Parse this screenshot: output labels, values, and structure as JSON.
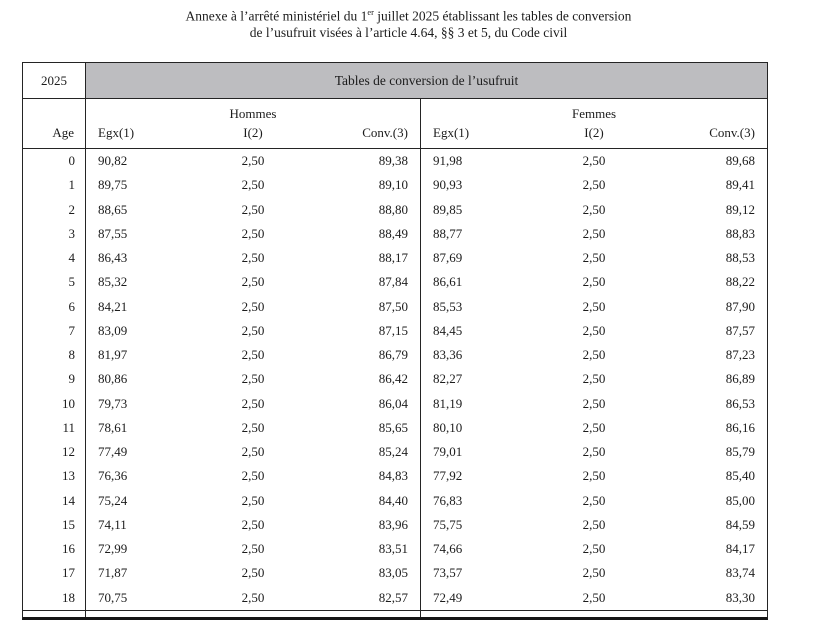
{
  "title": {
    "line1_before": "Annexe à l’arrêté ministériel du 1",
    "line1_sup": "er",
    "line1_after": " juillet 2025 établissant les tables de conversion",
    "line2": "de l’usufruit visées à l’article 4.64, §§ 3 et 5, du Code civil"
  },
  "table": {
    "year": "2025",
    "caption": "Tables de conversion de l’usufruit",
    "age_header": "Age",
    "groups": {
      "hommes": "Hommes",
      "femmes": "Femmes"
    },
    "col_headers": {
      "egx": "Egx(1)",
      "i": "I(2)",
      "conv": "Conv.(3)"
    },
    "colors": {
      "caption_bg": "#bdbdc0",
      "border": "#242424"
    },
    "rows": [
      {
        "age": "0",
        "h_egx": "90,82",
        "h_i": "2,50",
        "h_conv": "89,38",
        "f_egx": "91,98",
        "f_i": "2,50",
        "f_conv": "89,68"
      },
      {
        "age": "1",
        "h_egx": "89,75",
        "h_i": "2,50",
        "h_conv": "89,10",
        "f_egx": "90,93",
        "f_i": "2,50",
        "f_conv": "89,41"
      },
      {
        "age": "2",
        "h_egx": "88,65",
        "h_i": "2,50",
        "h_conv": "88,80",
        "f_egx": "89,85",
        "f_i": "2,50",
        "f_conv": "89,12"
      },
      {
        "age": "3",
        "h_egx": "87,55",
        "h_i": "2,50",
        "h_conv": "88,49",
        "f_egx": "88,77",
        "f_i": "2,50",
        "f_conv": "88,83"
      },
      {
        "age": "4",
        "h_egx": "86,43",
        "h_i": "2,50",
        "h_conv": "88,17",
        "f_egx": "87,69",
        "f_i": "2,50",
        "f_conv": "88,53"
      },
      {
        "age": "5",
        "h_egx": "85,32",
        "h_i": "2,50",
        "h_conv": "87,84",
        "f_egx": "86,61",
        "f_i": "2,50",
        "f_conv": "88,22"
      },
      {
        "age": "6",
        "h_egx": "84,21",
        "h_i": "2,50",
        "h_conv": "87,50",
        "f_egx": "85,53",
        "f_i": "2,50",
        "f_conv": "87,90"
      },
      {
        "age": "7",
        "h_egx": "83,09",
        "h_i": "2,50",
        "h_conv": "87,15",
        "f_egx": "84,45",
        "f_i": "2,50",
        "f_conv": "87,57"
      },
      {
        "age": "8",
        "h_egx": "81,97",
        "h_i": "2,50",
        "h_conv": "86,79",
        "f_egx": "83,36",
        "f_i": "2,50",
        "f_conv": "87,23"
      },
      {
        "age": "9",
        "h_egx": "80,86",
        "h_i": "2,50",
        "h_conv": "86,42",
        "f_egx": "82,27",
        "f_i": "2,50",
        "f_conv": "86,89"
      },
      {
        "age": "10",
        "h_egx": "79,73",
        "h_i": "2,50",
        "h_conv": "86,04",
        "f_egx": "81,19",
        "f_i": "2,50",
        "f_conv": "86,53"
      },
      {
        "age": "11",
        "h_egx": "78,61",
        "h_i": "2,50",
        "h_conv": "85,65",
        "f_egx": "80,10",
        "f_i": "2,50",
        "f_conv": "86,16"
      },
      {
        "age": "12",
        "h_egx": "77,49",
        "h_i": "2,50",
        "h_conv": "85,24",
        "f_egx": "79,01",
        "f_i": "2,50",
        "f_conv": "85,79"
      },
      {
        "age": "13",
        "h_egx": "76,36",
        "h_i": "2,50",
        "h_conv": "84,83",
        "f_egx": "77,92",
        "f_i": "2,50",
        "f_conv": "85,40"
      },
      {
        "age": "14",
        "h_egx": "75,24",
        "h_i": "2,50",
        "h_conv": "84,40",
        "f_egx": "76,83",
        "f_i": "2,50",
        "f_conv": "85,00"
      },
      {
        "age": "15",
        "h_egx": "74,11",
        "h_i": "2,50",
        "h_conv": "83,96",
        "f_egx": "75,75",
        "f_i": "2,50",
        "f_conv": "84,59"
      },
      {
        "age": "16",
        "h_egx": "72,99",
        "h_i": "2,50",
        "h_conv": "83,51",
        "f_egx": "74,66",
        "f_i": "2,50",
        "f_conv": "84,17"
      },
      {
        "age": "17",
        "h_egx": "71,87",
        "h_i": "2,50",
        "h_conv": "83,05",
        "f_egx": "73,57",
        "f_i": "2,50",
        "f_conv": "83,74"
      },
      {
        "age": "18",
        "h_egx": "70,75",
        "h_i": "2,50",
        "h_conv": "82,57",
        "f_egx": "72,49",
        "f_i": "2,50",
        "f_conv": "83,30"
      }
    ]
  }
}
